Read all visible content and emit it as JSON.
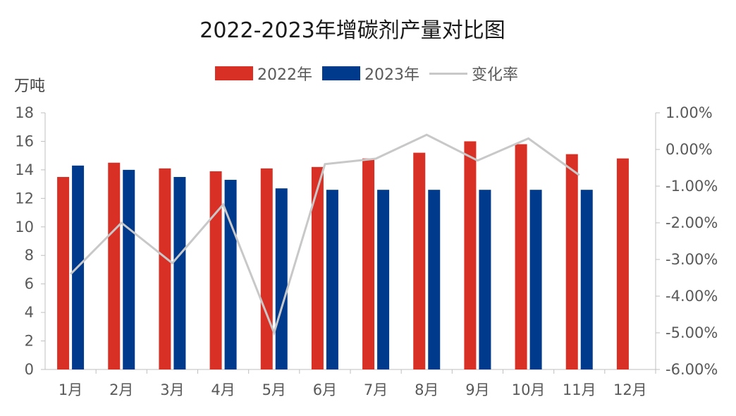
{
  "chart_data": {
    "type": "bar",
    "title": "2022-2023年增碳剂产量对比图",
    "ylabel": "万吨",
    "categories": [
      "1月",
      "2月",
      "3月",
      "4月",
      "5月",
      "6月",
      "7月",
      "8月",
      "9月",
      "10月",
      "11月",
      "12月"
    ],
    "series": [
      {
        "name": "2022年",
        "type": "bar",
        "axis": "left",
        "color": "#D93025",
        "values": [
          13.5,
          14.5,
          14.1,
          13.9,
          14.1,
          14.2,
          14.8,
          15.2,
          16.0,
          15.8,
          15.1,
          14.8
        ]
      },
      {
        "name": "2023年",
        "type": "bar",
        "axis": "left",
        "color": "#003A8C",
        "values": [
          14.3,
          14.0,
          13.5,
          13.3,
          12.7,
          12.6,
          12.6,
          12.6,
          12.6,
          12.6,
          12.6,
          null
        ]
      },
      {
        "name": "变化率",
        "type": "line",
        "axis": "right",
        "color": "#C8C8C8",
        "values": [
          -3.4,
          -2.0,
          -3.1,
          -1.5,
          -5.0,
          -0.4,
          -0.25,
          0.4,
          -0.3,
          0.3,
          -0.7,
          null
        ]
      }
    ],
    "ylim": [
      0,
      18
    ],
    "yticks": [
      0,
      2,
      4,
      6,
      8,
      10,
      12,
      14,
      16,
      18
    ],
    "y2lim": [
      -6,
      1
    ],
    "y2ticks": [
      "-6.00%",
      "-5.00%",
      "-4.00%",
      "-3.00%",
      "-2.00%",
      "-1.00%",
      "0.00%",
      "1.00%"
    ],
    "legend": "top-center",
    "grid": false
  }
}
